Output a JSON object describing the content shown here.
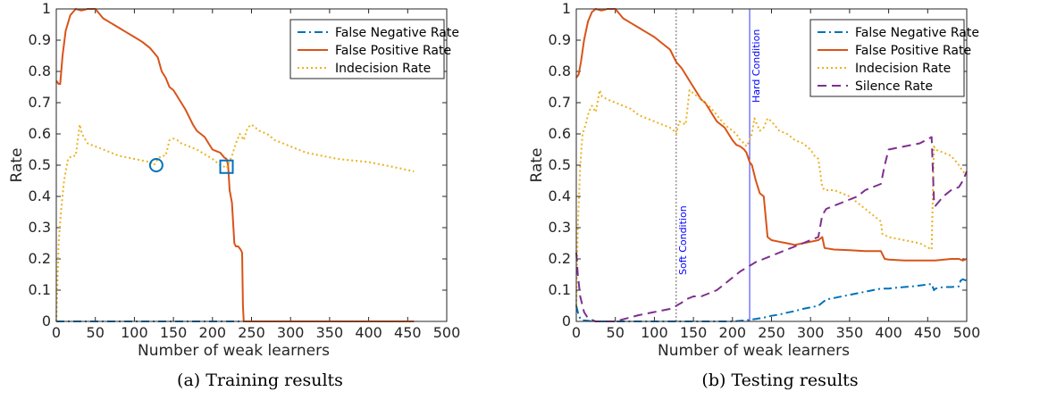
{
  "chart_data": [
    {
      "type": "line",
      "caption": "(a) Training results",
      "xlabel": "Number of weak learners",
      "ylabel": "Rate",
      "xlim": [
        0,
        500
      ],
      "ylim": [
        0,
        1
      ],
      "xticks": [
        "0",
        "50",
        "100",
        "150",
        "200",
        "250",
        "300",
        "350",
        "400",
        "450",
        "500"
      ],
      "yticks": [
        "0",
        "0.1",
        "0.2",
        "0.3",
        "0.4",
        "0.5",
        "0.6",
        "0.7",
        "0.8",
        "0.9",
        "1"
      ],
      "grid": false,
      "legend": "top-right",
      "series": [
        {
          "name": "False Negative Rate",
          "color": "#0072BD",
          "style": "dashdot",
          "x": [
            0,
            100,
            200,
            240,
            300,
            400,
            458
          ],
          "y": [
            0,
            0,
            0,
            0,
            0,
            0,
            0
          ]
        },
        {
          "name": "False Positive Rate",
          "color": "#D95319",
          "style": "solid",
          "x": [
            0,
            3,
            5,
            8,
            12,
            18,
            25,
            32,
            40,
            50,
            60,
            70,
            80,
            90,
            100,
            110,
            120,
            125,
            130,
            135,
            140,
            145,
            150,
            155,
            160,
            165,
            170,
            175,
            180,
            185,
            190,
            195,
            200,
            205,
            210,
            215,
            218,
            220,
            222,
            225,
            228,
            230,
            233,
            236,
            238,
            239,
            240,
            241,
            300,
            400,
            458
          ],
          "y": [
            0.77,
            0.76,
            0.76,
            0.85,
            0.93,
            0.98,
            1.0,
            0.995,
            1.0,
            1.0,
            0.97,
            0.955,
            0.94,
            0.925,
            0.91,
            0.895,
            0.875,
            0.86,
            0.845,
            0.8,
            0.78,
            0.75,
            0.74,
            0.72,
            0.7,
            0.68,
            0.655,
            0.63,
            0.61,
            0.6,
            0.59,
            0.57,
            0.55,
            0.545,
            0.54,
            0.525,
            0.52,
            0.5,
            0.42,
            0.38,
            0.25,
            0.24,
            0.24,
            0.23,
            0.22,
            0.05,
            0.0,
            0.0,
            0.0,
            0.0,
            0.0
          ]
        },
        {
          "name": "Indecision Rate",
          "color": "#EDB120",
          "style": "dotted",
          "x": [
            0,
            3,
            6,
            10,
            15,
            20,
            25,
            30,
            33,
            40,
            50,
            60,
            70,
            80,
            90,
            100,
            110,
            120,
            125,
            130,
            135,
            140,
            145,
            150,
            155,
            160,
            170,
            180,
            190,
            200,
            205,
            210,
            215,
            218,
            220,
            225,
            230,
            235,
            240,
            245,
            250,
            260,
            270,
            280,
            290,
            300,
            320,
            340,
            360,
            380,
            400,
            420,
            440,
            458
          ],
          "y": [
            0.0,
            0.25,
            0.35,
            0.45,
            0.52,
            0.53,
            0.53,
            0.63,
            0.6,
            0.57,
            0.56,
            0.55,
            0.54,
            0.53,
            0.525,
            0.52,
            0.515,
            0.51,
            0.5,
            0.52,
            0.53,
            0.53,
            0.58,
            0.585,
            0.58,
            0.57,
            0.56,
            0.55,
            0.535,
            0.52,
            0.51,
            0.5,
            0.495,
            0.49,
            0.5,
            0.53,
            0.57,
            0.6,
            0.58,
            0.62,
            0.63,
            0.61,
            0.6,
            0.58,
            0.57,
            0.56,
            0.54,
            0.53,
            0.52,
            0.515,
            0.51,
            0.5,
            0.49,
            0.48
          ]
        }
      ],
      "markers": [
        {
          "shape": "circle",
          "x": 128,
          "y": 0.5,
          "color": "#0072BD"
        },
        {
          "shape": "square",
          "x": 218,
          "y": 0.495,
          "color": "#0072BD"
        }
      ]
    },
    {
      "type": "line",
      "caption": "(b) Testing results",
      "xlabel": "Number of weak learners",
      "ylabel": "Rate",
      "xlim": [
        0,
        500
      ],
      "ylim": [
        0,
        1
      ],
      "xticks": [
        "0",
        "50",
        "100",
        "150",
        "200",
        "250",
        "300",
        "350",
        "400",
        "450",
        "500"
      ],
      "yticks": [
        "0",
        "0.1",
        "0.2",
        "0.3",
        "0.4",
        "0.5",
        "0.6",
        "0.7",
        "0.8",
        "0.9",
        "1"
      ],
      "grid": false,
      "legend": "top-right",
      "vlines": [
        {
          "x": 128,
          "label": "Soft Condition",
          "style": "dotted",
          "color": "#404040"
        },
        {
          "x": 222,
          "label": "Hard Condition",
          "style": "solid",
          "color": "#0000ff"
        }
      ],
      "series": [
        {
          "name": "False Negative Rate",
          "color": "#0072BD",
          "style": "dashdot",
          "x": [
            0,
            3,
            6,
            10,
            15,
            20,
            50,
            100,
            150,
            200,
            215,
            222,
            230,
            240,
            250,
            260,
            270,
            280,
            290,
            300,
            310,
            315,
            320,
            330,
            340,
            350,
            360,
            370,
            380,
            390,
            400,
            410,
            420,
            430,
            440,
            450,
            455,
            458,
            460,
            470,
            480,
            490,
            492,
            495,
            500
          ],
          "y": [
            0.05,
            0.02,
            0.005,
            0.003,
            0.002,
            0.0,
            0.0,
            0.0,
            0.0,
            0.0,
            0.003,
            0.005,
            0.008,
            0.012,
            0.018,
            0.022,
            0.028,
            0.033,
            0.04,
            0.045,
            0.05,
            0.06,
            0.07,
            0.075,
            0.08,
            0.085,
            0.09,
            0.095,
            0.1,
            0.105,
            0.105,
            0.108,
            0.11,
            0.112,
            0.115,
            0.118,
            0.12,
            0.1,
            0.105,
            0.11,
            0.11,
            0.112,
            0.13,
            0.135,
            0.13
          ]
        },
        {
          "name": "False Positive Rate",
          "color": "#D95319",
          "style": "solid",
          "x": [
            0,
            3,
            6,
            10,
            15,
            20,
            25,
            32,
            40,
            50,
            60,
            70,
            80,
            90,
            100,
            110,
            120,
            128,
            135,
            140,
            145,
            150,
            155,
            160,
            165,
            170,
            175,
            180,
            185,
            190,
            195,
            200,
            205,
            210,
            215,
            218,
            222,
            225,
            230,
            235,
            240,
            245,
            250,
            260,
            270,
            280,
            290,
            300,
            310,
            315,
            318,
            330,
            350,
            370,
            390,
            395,
            400,
            420,
            440,
            460,
            480,
            490,
            495,
            500
          ],
          "y": [
            0.78,
            0.79,
            0.83,
            0.9,
            0.96,
            0.99,
            1.0,
            0.995,
            1.0,
            1.0,
            0.97,
            0.955,
            0.94,
            0.925,
            0.91,
            0.89,
            0.87,
            0.83,
            0.81,
            0.79,
            0.77,
            0.75,
            0.73,
            0.71,
            0.7,
            0.68,
            0.66,
            0.64,
            0.63,
            0.62,
            0.6,
            0.58,
            0.565,
            0.56,
            0.55,
            0.54,
            0.51,
            0.5,
            0.45,
            0.41,
            0.4,
            0.27,
            0.26,
            0.255,
            0.25,
            0.245,
            0.25,
            0.255,
            0.26,
            0.27,
            0.235,
            0.23,
            0.228,
            0.225,
            0.225,
            0.2,
            0.198,
            0.195,
            0.195,
            0.195,
            0.2,
            0.2,
            0.195,
            0.2
          ]
        },
        {
          "name": "Indecision Rate",
          "color": "#EDB120",
          "style": "dotted",
          "x": [
            0,
            2,
            5,
            8,
            12,
            16,
            20,
            25,
            30,
            33,
            40,
            50,
            60,
            70,
            80,
            90,
            100,
            110,
            120,
            125,
            128,
            132,
            140,
            145,
            150,
            155,
            160,
            170,
            180,
            190,
            200,
            205,
            210,
            215,
            218,
            222,
            225,
            228,
            235,
            240,
            245,
            250,
            260,
            270,
            280,
            290,
            300,
            305,
            310,
            315,
            318,
            330,
            340,
            350,
            360,
            370,
            380,
            390,
            392,
            400,
            420,
            440,
            455,
            458,
            460,
            470,
            480,
            490,
            495,
            500
          ],
          "y": [
            0.05,
            0.3,
            0.5,
            0.6,
            0.63,
            0.67,
            0.69,
            0.67,
            0.74,
            0.72,
            0.71,
            0.7,
            0.69,
            0.68,
            0.66,
            0.65,
            0.64,
            0.63,
            0.62,
            0.61,
            0.6,
            0.64,
            0.63,
            0.74,
            0.73,
            0.72,
            0.71,
            0.69,
            0.66,
            0.63,
            0.61,
            0.6,
            0.58,
            0.57,
            0.56,
            0.58,
            0.6,
            0.65,
            0.61,
            0.62,
            0.65,
            0.64,
            0.61,
            0.6,
            0.58,
            0.57,
            0.55,
            0.53,
            0.52,
            0.43,
            0.42,
            0.42,
            0.41,
            0.4,
            0.38,
            0.36,
            0.34,
            0.32,
            0.28,
            0.27,
            0.26,
            0.25,
            0.23,
            0.56,
            0.55,
            0.54,
            0.53,
            0.5,
            0.48,
            0.47
          ]
        },
        {
          "name": "Silence Rate",
          "color": "#7E2F8E",
          "style": "dashed",
          "x": [
            0,
            2,
            5,
            10,
            15,
            20,
            25,
            50,
            80,
            100,
            120,
            128,
            135,
            140,
            150,
            160,
            170,
            180,
            190,
            200,
            210,
            220,
            230,
            240,
            250,
            260,
            270,
            280,
            290,
            300,
            310,
            315,
            320,
            330,
            340,
            350,
            360,
            370,
            380,
            390,
            395,
            400,
            420,
            440,
            455,
            458,
            460,
            470,
            480,
            490,
            495,
            500
          ],
          "y": [
            0.22,
            0.15,
            0.08,
            0.03,
            0.01,
            0.005,
            0.0,
            0.0,
            0.02,
            0.03,
            0.04,
            0.05,
            0.06,
            0.07,
            0.08,
            0.08,
            0.09,
            0.1,
            0.12,
            0.14,
            0.16,
            0.175,
            0.19,
            0.2,
            0.21,
            0.22,
            0.23,
            0.24,
            0.25,
            0.26,
            0.27,
            0.34,
            0.36,
            0.37,
            0.38,
            0.39,
            0.4,
            0.42,
            0.43,
            0.44,
            0.5,
            0.55,
            0.56,
            0.57,
            0.59,
            0.39,
            0.37,
            0.4,
            0.42,
            0.43,
            0.45,
            0.48
          ]
        }
      ]
    }
  ]
}
